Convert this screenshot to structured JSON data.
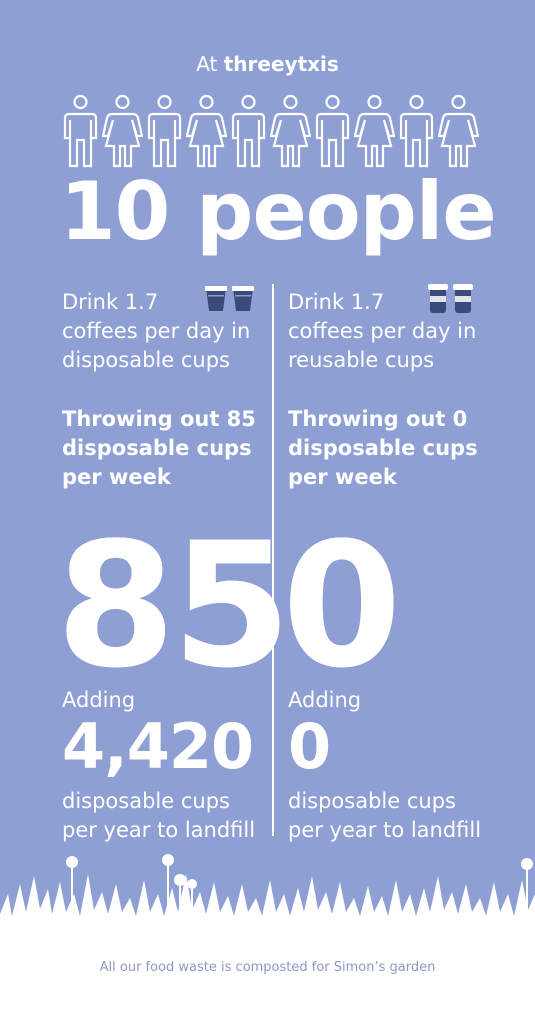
{
  "header": {
    "prefix": "At",
    "brand": "threeytxis"
  },
  "headline": "10 people",
  "left": {
    "drink_line1": "Drink 1.7",
    "drink_rest": "coffees per day in disposable cups",
    "throwing": "Throwing out 85 disposable cups per week",
    "big_number": "85",
    "adding_label": "Adding",
    "adding_value": "4,420",
    "adding_suffix": "disposable cups per year to landfill"
  },
  "right": {
    "drink_line1": "Drink 1.7",
    "drink_rest": "coffees per day in reusable cups",
    "throwing": "Throwing out 0 disposable cups per week",
    "big_number": "0",
    "adding_label": "Adding",
    "adding_value": "0",
    "adding_suffix": "disposable cups per year to landfill"
  },
  "footer": "All our food waste is composted for Simon’s garden",
  "colors": {
    "background": "#8e9fd4",
    "text": "#ffffff",
    "cup_dark": "#3a4a7a",
    "footer_text": "#8d98c9"
  }
}
